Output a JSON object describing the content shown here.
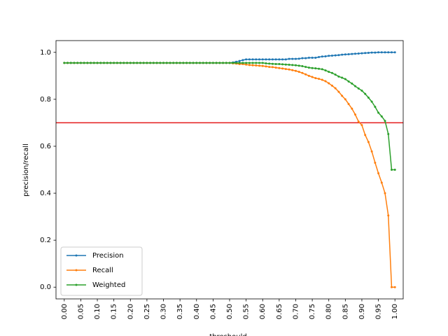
{
  "chart_data": {
    "type": "line",
    "xlabel": "threshould",
    "ylabel": "precision/recall",
    "xlim": [
      -0.025,
      1.025
    ],
    "ylim": [
      -0.05,
      1.05
    ],
    "x_ticks": [
      "0.00",
      "0.05",
      "0.10",
      "0.15",
      "0.20",
      "0.25",
      "0.30",
      "0.35",
      "0.40",
      "0.45",
      "0.50",
      "0.55",
      "0.60",
      "0.65",
      "0.70",
      "0.75",
      "0.80",
      "0.85",
      "0.90",
      "0.95",
      "1.00"
    ],
    "y_ticks": [
      "0.0",
      "0.2",
      "0.4",
      "0.6",
      "0.8",
      "1.0"
    ],
    "reference_line": {
      "y": 0.7,
      "color": "#e41a1c"
    },
    "legend": {
      "placement": "lower-left"
    },
    "grid": false,
    "x": [
      0.0,
      0.01,
      0.02,
      0.03,
      0.04,
      0.05,
      0.06,
      0.07,
      0.08,
      0.09,
      0.1,
      0.11,
      0.12,
      0.13,
      0.14,
      0.15,
      0.16,
      0.17,
      0.18,
      0.19,
      0.2,
      0.21,
      0.22,
      0.23,
      0.24,
      0.25,
      0.26,
      0.27,
      0.28,
      0.29,
      0.3,
      0.31,
      0.32,
      0.33,
      0.34,
      0.35,
      0.36,
      0.37,
      0.38,
      0.39,
      0.4,
      0.41,
      0.42,
      0.43,
      0.44,
      0.45,
      0.46,
      0.47,
      0.48,
      0.49,
      0.5,
      0.51,
      0.52,
      0.53,
      0.54,
      0.55,
      0.56,
      0.57,
      0.58,
      0.59,
      0.6,
      0.61,
      0.62,
      0.63,
      0.64,
      0.65,
      0.66,
      0.67,
      0.68,
      0.69,
      0.7,
      0.71,
      0.72,
      0.73,
      0.74,
      0.75,
      0.76,
      0.77,
      0.78,
      0.79,
      0.8,
      0.81,
      0.82,
      0.83,
      0.84,
      0.85,
      0.86,
      0.87,
      0.88,
      0.89,
      0.9,
      0.91,
      0.92,
      0.93,
      0.94,
      0.95,
      0.96,
      0.97,
      0.98,
      0.99,
      1.0
    ],
    "series": [
      {
        "name": "Precision",
        "color": "#1f77b4",
        "values": [
          0.955,
          0.955,
          0.955,
          0.955,
          0.955,
          0.955,
          0.955,
          0.955,
          0.955,
          0.955,
          0.955,
          0.955,
          0.955,
          0.955,
          0.955,
          0.955,
          0.955,
          0.955,
          0.955,
          0.955,
          0.955,
          0.955,
          0.955,
          0.955,
          0.955,
          0.955,
          0.955,
          0.955,
          0.955,
          0.955,
          0.955,
          0.955,
          0.955,
          0.955,
          0.955,
          0.955,
          0.955,
          0.955,
          0.955,
          0.955,
          0.955,
          0.955,
          0.955,
          0.955,
          0.955,
          0.955,
          0.955,
          0.955,
          0.955,
          0.955,
          0.955,
          0.957,
          0.96,
          0.963,
          0.967,
          0.97,
          0.97,
          0.97,
          0.97,
          0.97,
          0.97,
          0.97,
          0.97,
          0.97,
          0.97,
          0.97,
          0.97,
          0.97,
          0.972,
          0.972,
          0.972,
          0.973,
          0.975,
          0.975,
          0.977,
          0.977,
          0.977,
          0.98,
          0.982,
          0.983,
          0.985,
          0.986,
          0.987,
          0.988,
          0.99,
          0.991,
          0.992,
          0.993,
          0.994,
          0.995,
          0.996,
          0.997,
          0.998,
          0.999,
          0.999,
          1.0,
          1.0,
          1.0,
          1.0,
          1.0,
          1.0
        ]
      },
      {
        "name": "Recall",
        "color": "#ff7f0e",
        "values": [
          0.955,
          0.955,
          0.955,
          0.955,
          0.955,
          0.955,
          0.955,
          0.955,
          0.955,
          0.955,
          0.955,
          0.955,
          0.955,
          0.955,
          0.955,
          0.955,
          0.955,
          0.955,
          0.955,
          0.955,
          0.955,
          0.955,
          0.955,
          0.955,
          0.955,
          0.955,
          0.955,
          0.955,
          0.955,
          0.955,
          0.955,
          0.955,
          0.955,
          0.955,
          0.955,
          0.955,
          0.955,
          0.955,
          0.955,
          0.955,
          0.955,
          0.955,
          0.955,
          0.955,
          0.955,
          0.955,
          0.955,
          0.955,
          0.955,
          0.955,
          0.955,
          0.953,
          0.952,
          0.95,
          0.95,
          0.948,
          0.946,
          0.945,
          0.944,
          0.943,
          0.942,
          0.94,
          0.938,
          0.937,
          0.935,
          0.933,
          0.931,
          0.929,
          0.927,
          0.924,
          0.921,
          0.917,
          0.912,
          0.906,
          0.9,
          0.895,
          0.89,
          0.887,
          0.883,
          0.877,
          0.868,
          0.858,
          0.847,
          0.832,
          0.815,
          0.8,
          0.78,
          0.76,
          0.735,
          0.705,
          0.69,
          0.648,
          0.618,
          0.578,
          0.53,
          0.485,
          0.445,
          0.4,
          0.305,
          0.0,
          0.0
        ]
      },
      {
        "name": "Weighted",
        "color": "#2ca02c",
        "values": [
          0.955,
          0.955,
          0.955,
          0.955,
          0.955,
          0.955,
          0.955,
          0.955,
          0.955,
          0.955,
          0.955,
          0.955,
          0.955,
          0.955,
          0.955,
          0.955,
          0.955,
          0.955,
          0.955,
          0.955,
          0.955,
          0.955,
          0.955,
          0.955,
          0.955,
          0.955,
          0.955,
          0.955,
          0.955,
          0.955,
          0.955,
          0.955,
          0.955,
          0.955,
          0.955,
          0.955,
          0.955,
          0.955,
          0.955,
          0.955,
          0.955,
          0.955,
          0.955,
          0.955,
          0.955,
          0.955,
          0.955,
          0.955,
          0.955,
          0.955,
          0.955,
          0.955,
          0.955,
          0.955,
          0.955,
          0.955,
          0.955,
          0.955,
          0.955,
          0.955,
          0.955,
          0.953,
          0.952,
          0.951,
          0.95,
          0.95,
          0.949,
          0.948,
          0.947,
          0.946,
          0.945,
          0.943,
          0.941,
          0.938,
          0.935,
          0.933,
          0.932,
          0.93,
          0.928,
          0.923,
          0.917,
          0.912,
          0.905,
          0.897,
          0.892,
          0.886,
          0.876,
          0.867,
          0.856,
          0.846,
          0.837,
          0.823,
          0.807,
          0.79,
          0.768,
          0.743,
          0.727,
          0.708,
          0.652,
          0.5,
          0.5
        ]
      }
    ]
  }
}
